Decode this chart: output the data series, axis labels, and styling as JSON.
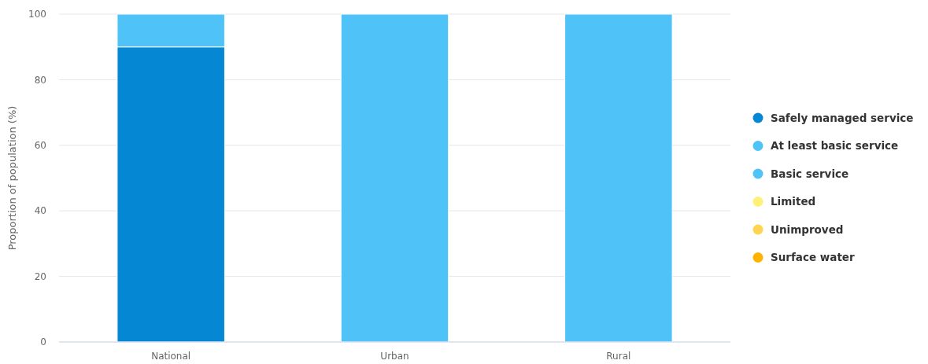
{
  "chart_data": {
    "type": "bar",
    "stacked": true,
    "ylabel": "Proportion of population (%)",
    "categories": [
      "National",
      "Urban",
      "Rural"
    ],
    "series": [
      {
        "name": "Safely managed service",
        "color": "#0587d4",
        "values": [
          90,
          null,
          null
        ]
      },
      {
        "name": "At least basic service",
        "color": "#4fc3f7",
        "values": [
          null,
          100,
          100
        ]
      },
      {
        "name": "Basic service",
        "color": "#4fc3f7",
        "values": [
          10,
          null,
          null
        ]
      },
      {
        "name": "Limited",
        "color": "#fff176",
        "values": [
          null,
          null,
          null
        ]
      },
      {
        "name": "Unimproved",
        "color": "#ffd54f",
        "values": [
          null,
          null,
          null
        ]
      },
      {
        "name": "Surface water",
        "color": "#ffb300",
        "values": [
          null,
          null,
          null
        ]
      }
    ],
    "ylim": [
      0,
      100
    ],
    "yticks": [
      0,
      20,
      40,
      60,
      80,
      100
    ],
    "grid": "y",
    "legend": "right"
  }
}
